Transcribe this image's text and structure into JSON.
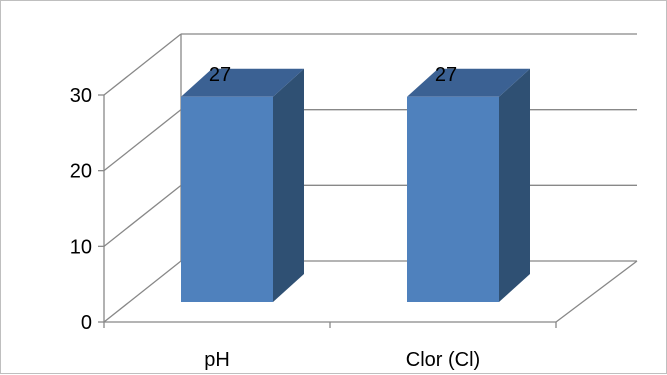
{
  "chart_data": {
    "type": "bar",
    "style": "3d-column",
    "categories": [
      "pH",
      "Clor (Cl)"
    ],
    "values": [
      27,
      27
    ],
    "data_labels": [
      "27",
      "27"
    ],
    "ylim": [
      0,
      30
    ],
    "yticks": [
      "0",
      "10",
      "20",
      "30"
    ],
    "grid": true,
    "colors": {
      "bar_front": "#4f81bd",
      "bar_side": "#2f5073",
      "bar_top": "#3b6193",
      "grid": "#888888",
      "axis": "#888888"
    }
  }
}
